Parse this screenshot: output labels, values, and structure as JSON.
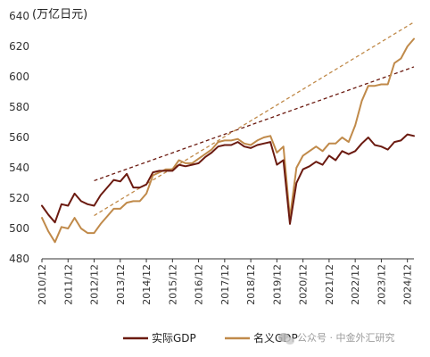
{
  "chart_data": {
    "type": "line",
    "unit_label": "(万亿日元)",
    "ylim": [
      480,
      640
    ],
    "y_ticks": [
      480,
      500,
      520,
      540,
      560,
      580,
      600,
      620,
      640
    ],
    "x_ticks": [
      "2010/12",
      "2011/12",
      "2012/12",
      "2013/12",
      "2014/12",
      "2015/12",
      "2016/12",
      "2017/12",
      "2018/12",
      "2019/12",
      "2020/12",
      "2021/12",
      "2022/12",
      "2023/12",
      "2024/12"
    ],
    "x_start": 2010.75,
    "x_step": 0.25,
    "grid": false,
    "legend_position": "bottom",
    "series": [
      {
        "name": "实际GDP",
        "color": "#6b1a10",
        "values": [
          515,
          509,
          504,
          516,
          515,
          523,
          518,
          516,
          515,
          522,
          527,
          532,
          531,
          536,
          527,
          527,
          529,
          537,
          538,
          538,
          538,
          542,
          541,
          542,
          543,
          547,
          550,
          554,
          555,
          555,
          557,
          554,
          553,
          555,
          556,
          557,
          542,
          545,
          503,
          530,
          539,
          541,
          544,
          542,
          548,
          545,
          551,
          549,
          551,
          556,
          560,
          555,
          554,
          552,
          557,
          558,
          562,
          561
        ]
      },
      {
        "name": "名义GDP",
        "color": "#c08a4a",
        "values": [
          507,
          498,
          491,
          501,
          500,
          507,
          500,
          497,
          497,
          503,
          508,
          513,
          513,
          517,
          518,
          518,
          523,
          535,
          537,
          539,
          539,
          545,
          543,
          543,
          546,
          549,
          552,
          557,
          558,
          558,
          559,
          556,
          555,
          558,
          560,
          561,
          550,
          554,
          507,
          540,
          548,
          551,
          554,
          551,
          556,
          556,
          560,
          557,
          568,
          584,
          594,
          594,
          595,
          595,
          609,
          612,
          620,
          625
        ]
      }
    ],
    "trend_lines": [
      {
        "color": "#6b1a10",
        "x": [
          2012.75,
          2025.0
        ],
        "y": [
          531.5,
          606.5
        ]
      },
      {
        "color": "#c08a4a",
        "x": [
          2012.75,
          2025.0
        ],
        "y": [
          508.5,
          636.0
        ]
      }
    ]
  },
  "legend": {
    "items": [
      {
        "label": "实际GDP",
        "color": "#6b1a10"
      },
      {
        "label": "名义GDP",
        "color": "#c08a4a"
      }
    ]
  },
  "watermark": {
    "text": "公众号 · 中金外汇研究",
    "icon": "wechat-icon"
  }
}
